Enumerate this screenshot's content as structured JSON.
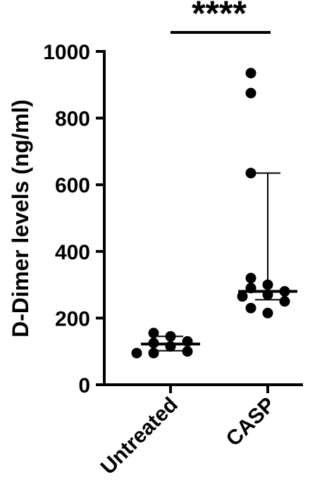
{
  "chart_data": {
    "type": "scatter",
    "ylabel": "D-Dimer levels (ng/ml)",
    "ylim": [
      0,
      1000
    ],
    "yticks": [
      0,
      200,
      400,
      600,
      800,
      1000
    ],
    "categories": [
      "Untreated",
      "CASP"
    ],
    "groups": [
      {
        "name": "Untreated",
        "values": [
          155,
          145,
          130,
          125,
          115,
          100,
          95,
          95
        ],
        "median": 122,
        "q1": 102,
        "q3": 145
      },
      {
        "name": "CASP",
        "values": [
          935,
          875,
          635,
          320,
          300,
          290,
          280,
          270,
          265,
          250,
          230,
          215
        ],
        "median": 280,
        "q1": 255,
        "q3": 635
      }
    ],
    "significance": {
      "label": "****",
      "from": "Untreated",
      "to": "CASP"
    },
    "grid": false,
    "legend": "none",
    "color": "#000000"
  }
}
